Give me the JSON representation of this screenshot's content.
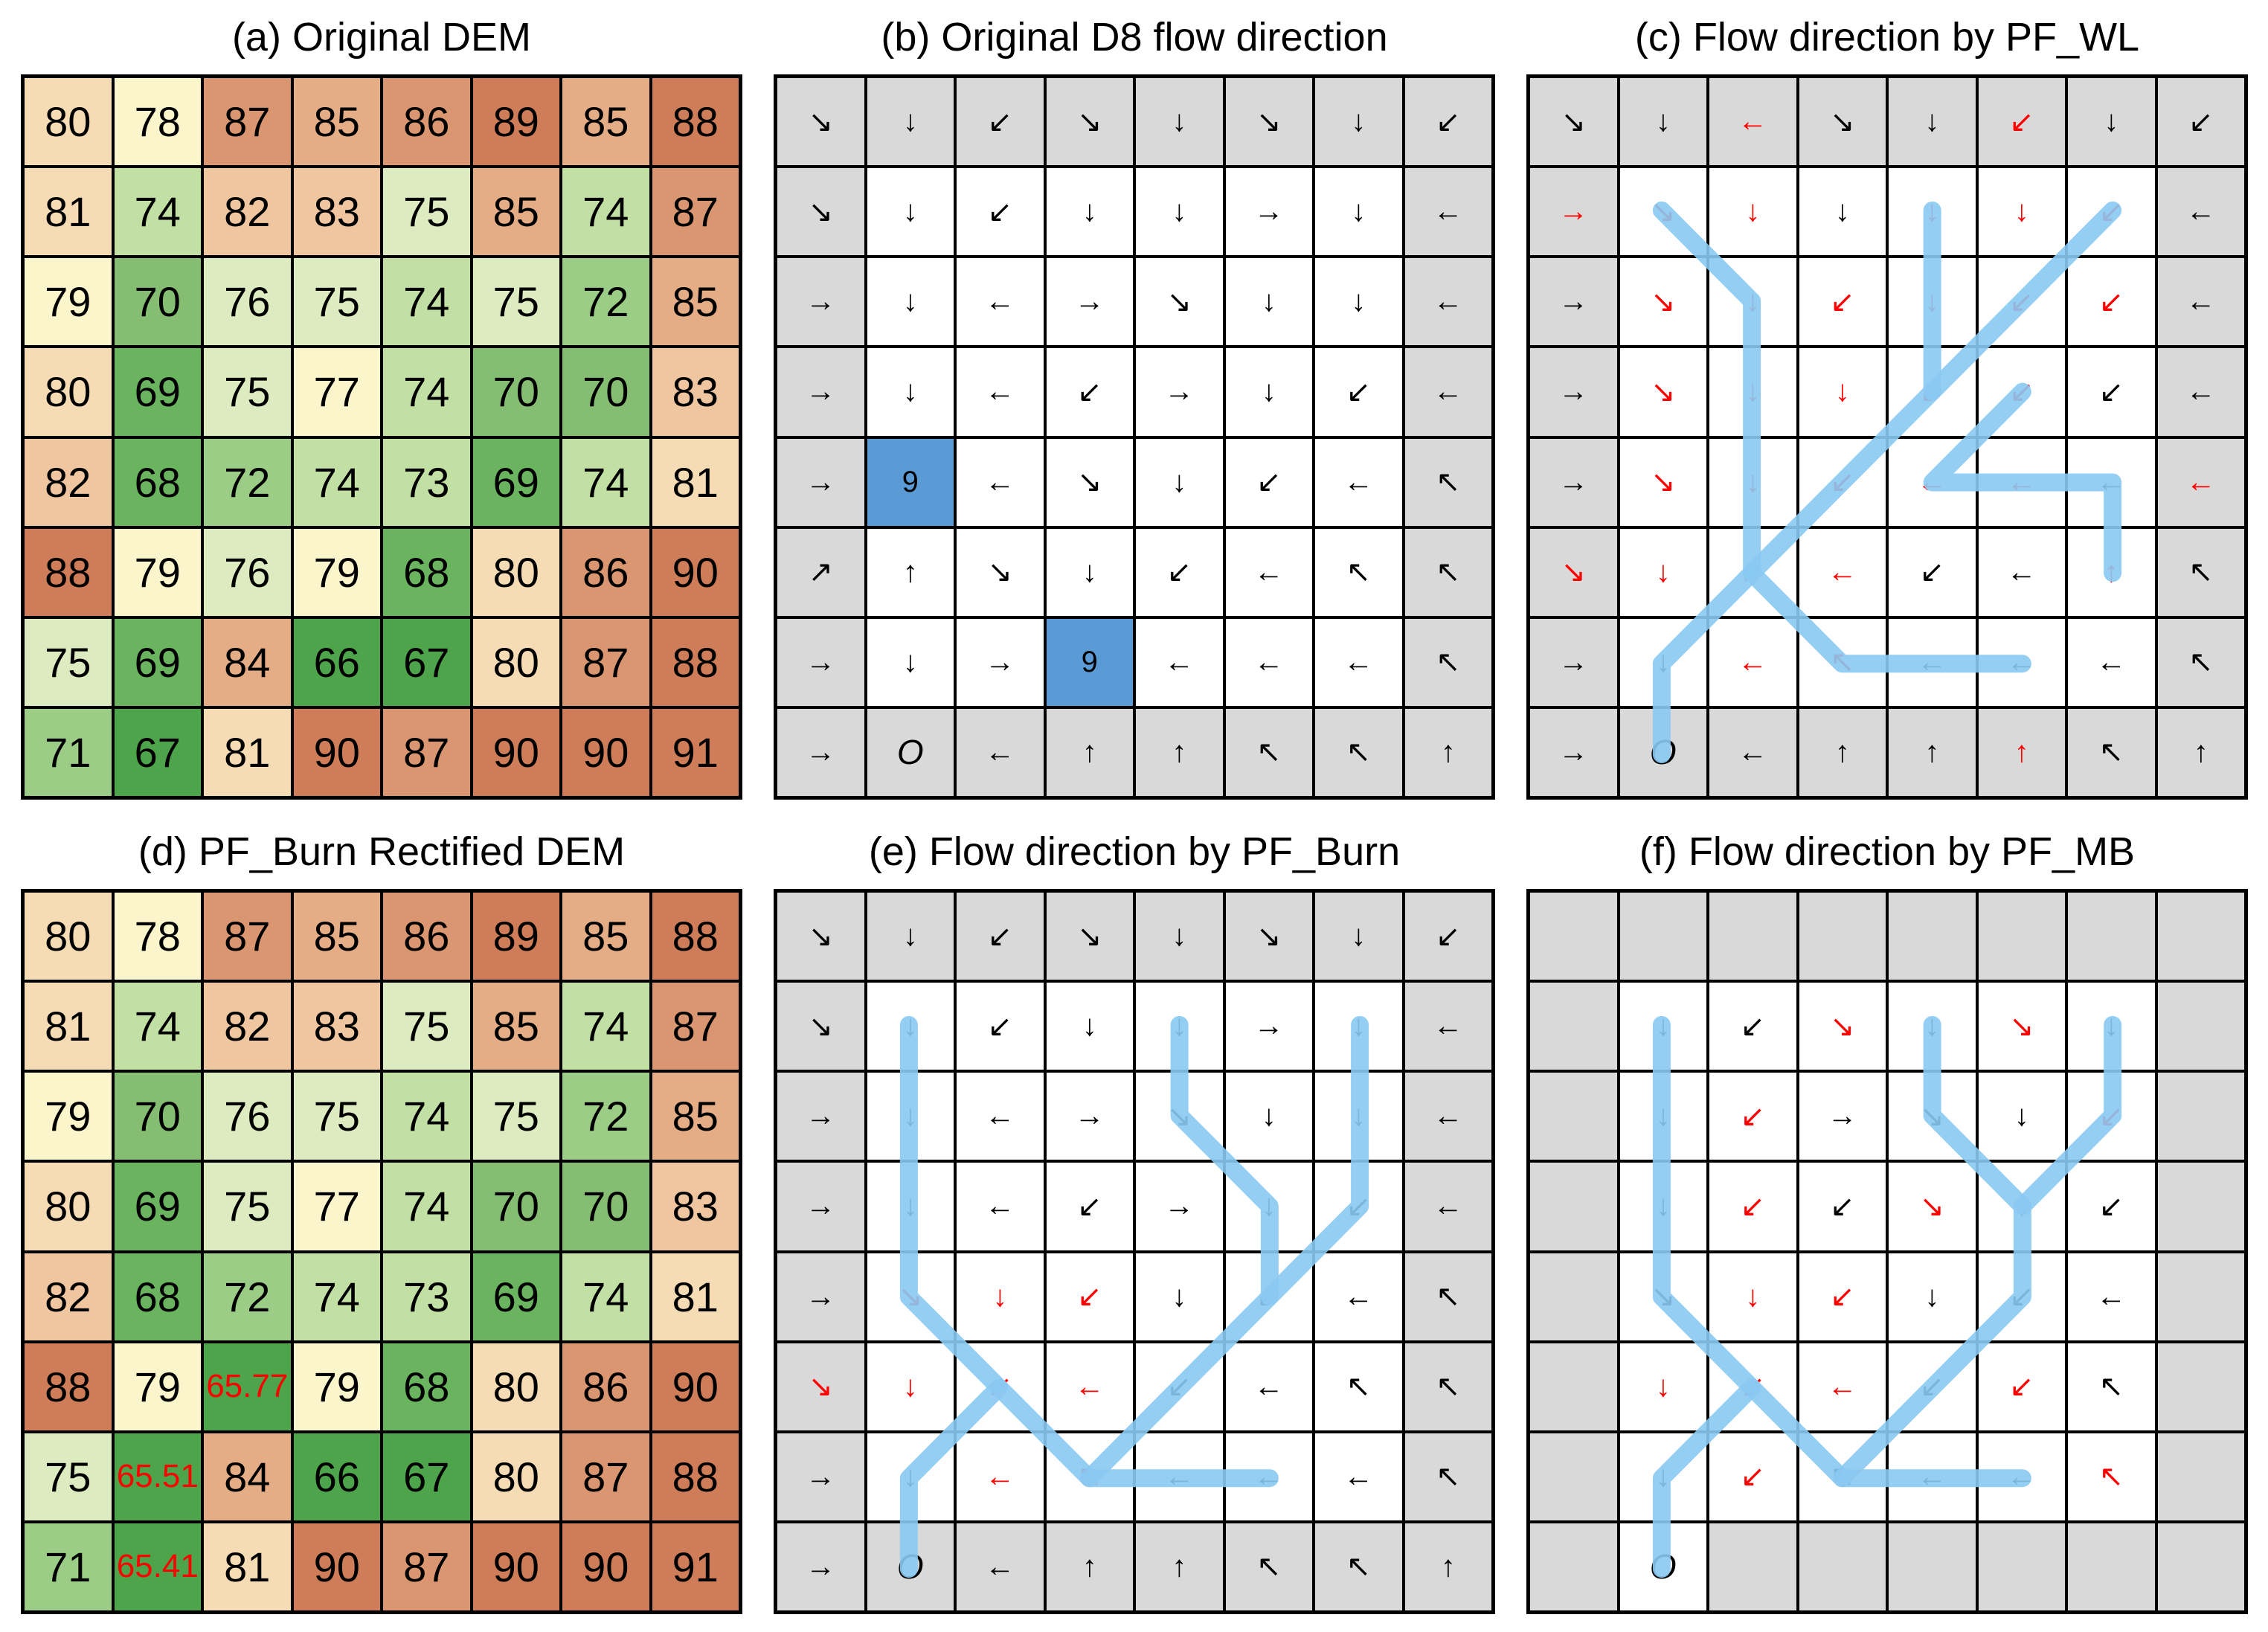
{
  "titles": {
    "a": "(a) Original DEM",
    "b": "(b)  Original D8 flow direction",
    "c": "(c) Flow direction by PF_WL",
    "d": "(d) PF_Burn Rectified DEM",
    "e": "(e) Flow direction by PF_Burn",
    "f": "(f) Flow direction by PF_MB"
  },
  "colors": {
    "gray": "#d9d9d9",
    "white": "#ffffff",
    "sink": "#5b9bd5",
    "path": "#89c9f2",
    "red": "#ff0000"
  },
  "dem_a": [
    [
      "80",
      "78",
      "87",
      "85",
      "86",
      "89",
      "85",
      "88"
    ],
    [
      "81",
      "74",
      "82",
      "83",
      "75",
      "85",
      "74",
      "87"
    ],
    [
      "79",
      "70",
      "76",
      "75",
      "74",
      "75",
      "72",
      "85"
    ],
    [
      "80",
      "69",
      "75",
      "77",
      "74",
      "70",
      "70",
      "83"
    ],
    [
      "82",
      "68",
      "72",
      "74",
      "73",
      "69",
      "74",
      "81"
    ],
    [
      "88",
      "79",
      "76",
      "79",
      "68",
      "80",
      "86",
      "90"
    ],
    [
      "75",
      "69",
      "84",
      "66",
      "67",
      "80",
      "87",
      "88"
    ],
    [
      "71",
      "67",
      "81",
      "90",
      "87",
      "90",
      "90",
      "91"
    ]
  ],
  "dem_d": [
    [
      "80",
      "78",
      "87",
      "85",
      "86",
      "89",
      "85",
      "88"
    ],
    [
      "81",
      "74",
      "82",
      "83",
      "75",
      "85",
      "74",
      "87"
    ],
    [
      "79",
      "70",
      "76",
      "75",
      "74",
      "75",
      "72",
      "85"
    ],
    [
      "80",
      "69",
      "75",
      "77",
      "74",
      "70",
      "70",
      "83"
    ],
    [
      "82",
      "68",
      "72",
      "74",
      "73",
      "69",
      "74",
      "81"
    ],
    [
      "88",
      "79",
      "65.77",
      "79",
      "68",
      "80",
      "86",
      "90"
    ],
    [
      "75",
      "65.51",
      "84",
      "66",
      "67",
      "80",
      "87",
      "88"
    ],
    [
      "71",
      "65.41",
      "81",
      "90",
      "87",
      "90",
      "90",
      "91"
    ]
  ],
  "dir_b": [
    [
      "↘",
      "↓",
      "↙",
      "↘",
      "↓",
      "↘",
      "↓",
      "↙"
    ],
    [
      "↘",
      "↓",
      "↙",
      "↓",
      "↓",
      "→",
      "↓",
      "←"
    ],
    [
      "→",
      "↓",
      "←",
      "→",
      "↘",
      "↓",
      "↓",
      "←"
    ],
    [
      "→",
      "↓",
      "←",
      "↙",
      "→",
      "↓",
      "↙",
      "←"
    ],
    [
      "→",
      "9",
      "←",
      "↘",
      "↓",
      "↙",
      "←",
      "↖"
    ],
    [
      "↗",
      "↑",
      "↘",
      "↓",
      "↙",
      "←",
      "↖",
      "↖"
    ],
    [
      "→",
      "↓",
      "→",
      "9",
      "←",
      "←",
      "←",
      "↖"
    ],
    [
      "→",
      "O",
      "←",
      "↑",
      "↑",
      "↖",
      "↖",
      "↑"
    ]
  ],
  "dir_c": [
    [
      "↘",
      "↓",
      "←",
      "↘",
      "↓",
      "↙",
      "↓",
      "↙"
    ],
    [
      "→",
      "↘",
      "↓",
      "↓",
      "↓",
      "↓",
      "↙",
      "←"
    ],
    [
      "→",
      "↘",
      "↓",
      "↙",
      "↓",
      "↙",
      "↙",
      "←"
    ],
    [
      "→",
      "↘",
      "↓",
      "↓",
      "↙",
      "↙",
      "↙",
      "←"
    ],
    [
      "→",
      "↘",
      "↓",
      "↙",
      "←",
      "←",
      "←",
      "←"
    ],
    [
      "↘",
      "↓",
      "↙",
      "←",
      "↙",
      "←",
      "↑",
      "↖"
    ],
    [
      "→",
      "↓",
      "←",
      "↖",
      "←",
      "←",
      "←",
      "↖"
    ],
    [
      "→",
      "O",
      "←",
      "↑",
      "↑",
      "↑",
      "↖",
      "↑"
    ]
  ],
  "dir_e": [
    [
      "↘",
      "↓",
      "↙",
      "↘",
      "↓",
      "↘",
      "↓",
      "↙"
    ],
    [
      "↘",
      "↓",
      "↙",
      "↓",
      "↓",
      "→",
      "↓",
      "←"
    ],
    [
      "→",
      "↓",
      "←",
      "→",
      "↘",
      "↓",
      "↓",
      "←"
    ],
    [
      "→",
      "↓",
      "←",
      "↙",
      "→",
      "↓",
      "↙",
      "←"
    ],
    [
      "→",
      "↘",
      "↓",
      "↙",
      "↓",
      "↙",
      "←",
      "↖"
    ],
    [
      "↘",
      "↓",
      "↙",
      "←",
      "↙",
      "←",
      "↖",
      "↖"
    ],
    [
      "→",
      "↓",
      "←",
      "↖",
      "←",
      "←",
      "←",
      "↖"
    ],
    [
      "→",
      "O",
      "←",
      "↑",
      "↑",
      "↖",
      "↖",
      "↑"
    ]
  ],
  "dir_f": [
    [
      "",
      "",
      "",
      "",
      "",
      "",
      "",
      ""
    ],
    [
      "",
      "↓",
      "↙",
      "↘",
      "↓",
      "↘",
      "↓",
      ""
    ],
    [
      "",
      "↓",
      "↙",
      "→",
      "↘",
      "↓",
      "↙",
      ""
    ],
    [
      "",
      "↓",
      "↙",
      "↙",
      "↘",
      "↓",
      "↙",
      ""
    ],
    [
      "",
      "↘",
      "↓",
      "↙",
      "↓",
      "↙",
      "←",
      ""
    ],
    [
      "",
      "↓",
      "↙",
      "←",
      "↙",
      "↙",
      "↖",
      ""
    ],
    [
      "",
      "↓",
      "↙",
      "↖",
      "←",
      "←",
      "↖",
      ""
    ],
    [
      "",
      "O",
      "",
      "",
      "",
      "",
      "",
      ""
    ]
  ]
}
